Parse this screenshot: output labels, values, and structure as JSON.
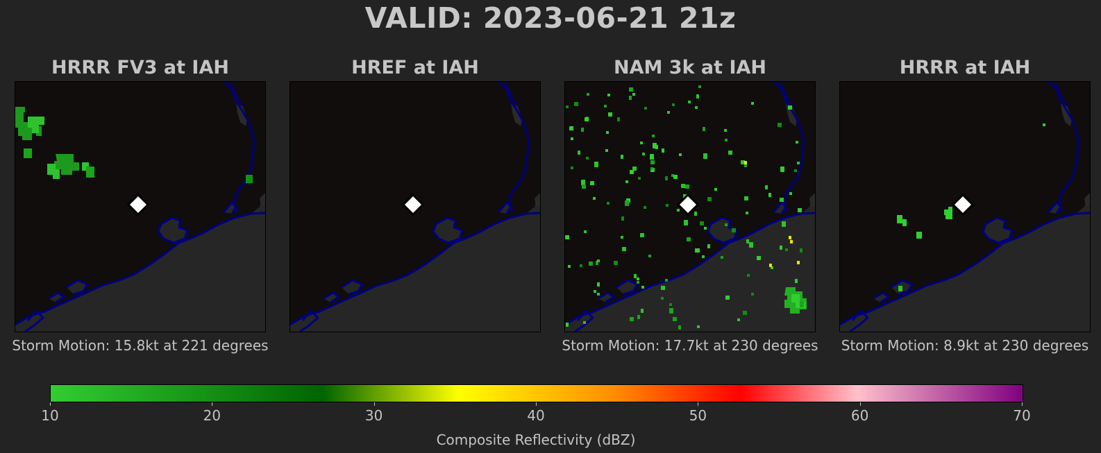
{
  "main_title": "VALID: 2023-06-21 21z",
  "panels": [
    {
      "title": "HRRR FV3 at IAH",
      "storm_motion": "Storm Motion: 15.8kt at 221 degrees"
    },
    {
      "title": "HREF at IAH",
      "storm_motion": ""
    },
    {
      "title": "NAM 3k at IAH",
      "storm_motion": "Storm Motion: 17.7kt at 230 degrees"
    },
    {
      "title": "HRRR at IAH",
      "storm_motion": "Storm Motion: 8.9kt at 230 degrees"
    }
  ],
  "colorbar": {
    "label": "Composite Reflectivity (dBZ)",
    "min": 10,
    "max": 70,
    "ticks": [
      "10",
      "20",
      "30",
      "40",
      "50",
      "60",
      "70"
    ],
    "colors": [
      "#32cd32",
      "#006400",
      "#ffff00",
      "#ff8c00",
      "#ff0000",
      "#ffc0cb",
      "#800080"
    ]
  },
  "map_colors": {
    "land": "#100d0c",
    "water": "#262626",
    "coastline": "#000080",
    "echo_light": "#2ec32e",
    "echo_dark": "#0a8a0a",
    "station_marker": "#ffffff"
  }
}
